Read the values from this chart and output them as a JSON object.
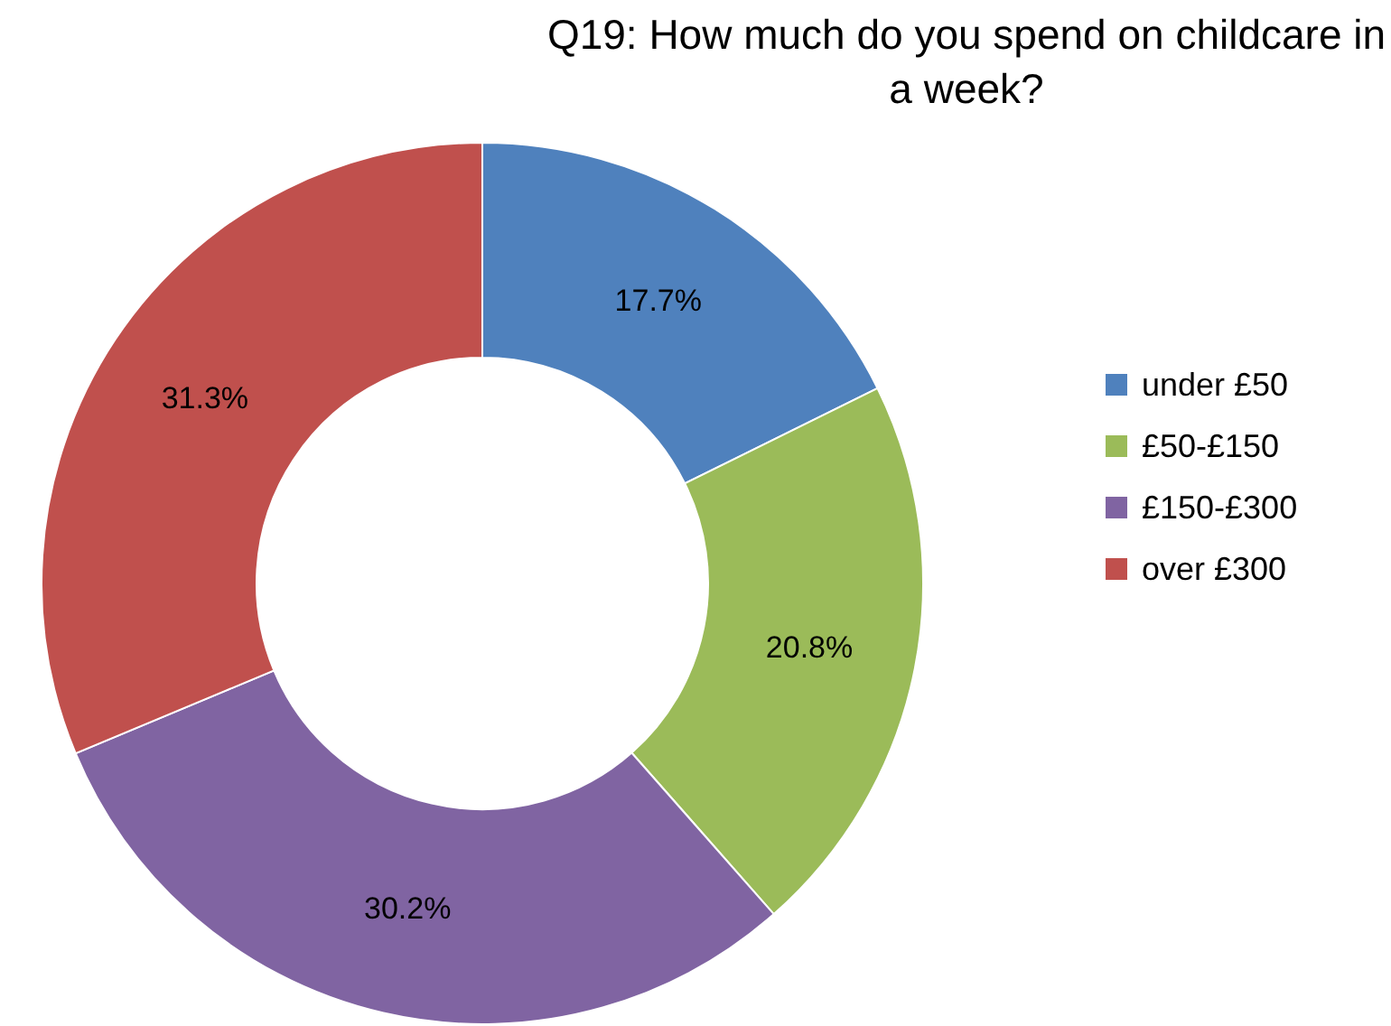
{
  "chart_data": {
    "type": "donut",
    "title": "Q19: How much do you spend on childcare in a week?",
    "categories": [
      "under £50",
      "£50-£150",
      "£150-£300",
      "over £300"
    ],
    "values": [
      17.7,
      20.8,
      30.2,
      31.3
    ],
    "colors": [
      "#4f81bd",
      "#9bbb59",
      "#8064a2",
      "#c0504d"
    ],
    "value_labels": [
      "17.7%",
      "20.8%",
      "30.2%",
      "31.3%"
    ],
    "legend": "right"
  }
}
